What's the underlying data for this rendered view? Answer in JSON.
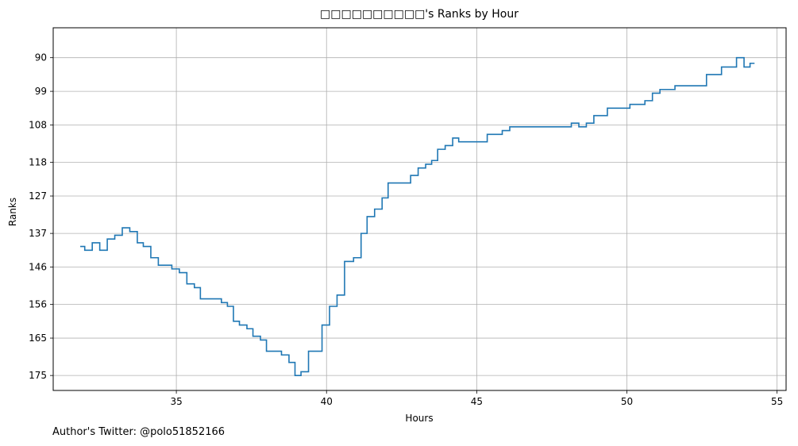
{
  "footer_note": "Author's Twitter: @polo51852166",
  "colors": {
    "line": "#1f77b4",
    "grid": "#b0b0b0",
    "axes": "#000000"
  },
  "chart_data": {
    "type": "line",
    "title": "□□□□□□□□□□'s Ranks by Hour",
    "xlabel": "Hours",
    "ylabel": "Ranks",
    "xlim": [
      30.9,
      55.3
    ],
    "ylim": [
      179,
      82
    ],
    "y_inverted": true,
    "grid": true,
    "step": "post",
    "xticks": [
      35,
      40,
      45,
      50,
      55
    ],
    "yticks": [
      90,
      99,
      108,
      118,
      127,
      137,
      146,
      156,
      165,
      175
    ],
    "series": [
      {
        "x": [
          31.8,
          31.95,
          32.2,
          32.45,
          32.7,
          32.95,
          33.2,
          33.45,
          33.7,
          33.9,
          34.15,
          34.4,
          34.6,
          34.85,
          35.1,
          35.35,
          35.6,
          35.8,
          36.05,
          36.5,
          36.7,
          36.9,
          37.1,
          37.35,
          37.55,
          37.8,
          38.0,
          38.2,
          38.5,
          38.75,
          38.95,
          39.15,
          39.4,
          39.6,
          39.85,
          40.1,
          40.35,
          40.6,
          40.9,
          41.15,
          41.35,
          41.6,
          41.85,
          42.05,
          42.3,
          42.8,
          43.05,
          43.3,
          43.5,
          43.7,
          43.95,
          44.2,
          44.4,
          44.65,
          45.35,
          45.85,
          46.1,
          46.35,
          47.1,
          48.15,
          48.4,
          48.65,
          48.9,
          49.35,
          50.1,
          50.6,
          50.85,
          51.1,
          51.6,
          52.1,
          52.65,
          53.15,
          53.65,
          53.9,
          54.1,
          54.25
        ],
        "y": [
          140.5,
          141.5,
          139.5,
          141.5,
          138.5,
          137.5,
          135.5,
          136.5,
          139.5,
          140.5,
          143.5,
          145.5,
          145.5,
          146.5,
          147.5,
          150.5,
          151.5,
          154.5,
          154.5,
          155.5,
          156.5,
          160.5,
          161.5,
          162.5,
          164.5,
          165.5,
          168.5,
          168.5,
          169.5,
          171.5,
          175,
          174,
          168.5,
          168.5,
          161.5,
          156.5,
          153.5,
          144.5,
          143.5,
          137,
          132.5,
          130.5,
          127.5,
          123.5,
          123.5,
          121.5,
          119.5,
          118.5,
          117.5,
          114.5,
          113.5,
          111.5,
          112.5,
          112.5,
          110.5,
          109.5,
          108.5,
          108.5,
          108.5,
          107.5,
          108.5,
          107.5,
          105.5,
          103.5,
          102.5,
          101.5,
          99.5,
          98.5,
          97.5,
          97.5,
          94.5,
          92.5,
          90,
          92.5,
          91.5,
          91.5
        ]
      }
    ]
  }
}
